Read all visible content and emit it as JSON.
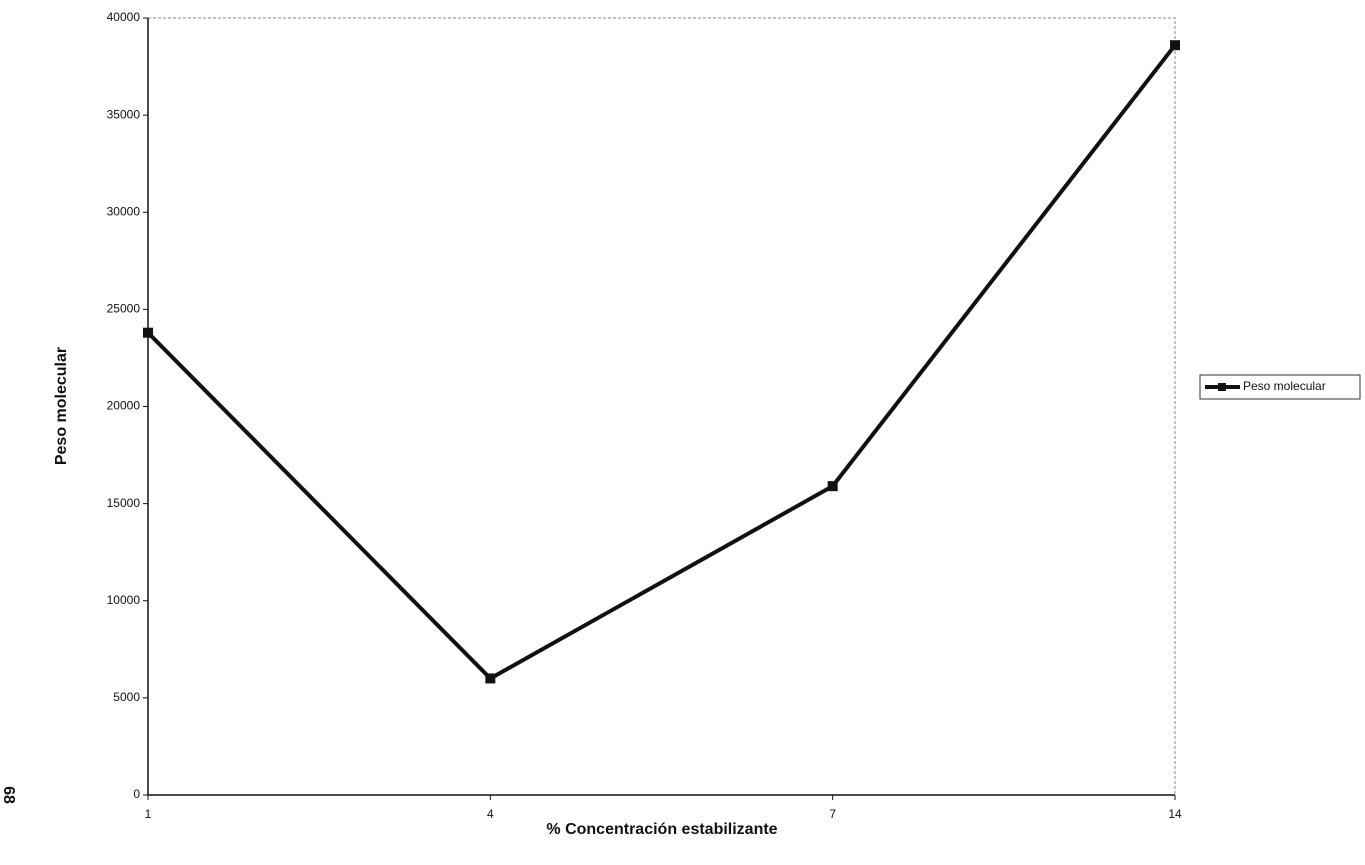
{
  "chart_data": {
    "type": "line",
    "x_label": "% Concentración estabilizante",
    "y_label": "Peso molecular",
    "categories": [
      "1",
      "4",
      "7",
      "14"
    ],
    "series": [
      {
        "name": "Peso molecular",
        "color": "#111111",
        "values": [
          23800,
          6000,
          15900,
          38600
        ]
      }
    ],
    "ylim": [
      0,
      40000
    ],
    "yticks": [
      0,
      5000,
      10000,
      15000,
      20000,
      25000,
      30000,
      35000,
      40000
    ],
    "grid": false,
    "legend": "right"
  },
  "page_number": "68"
}
